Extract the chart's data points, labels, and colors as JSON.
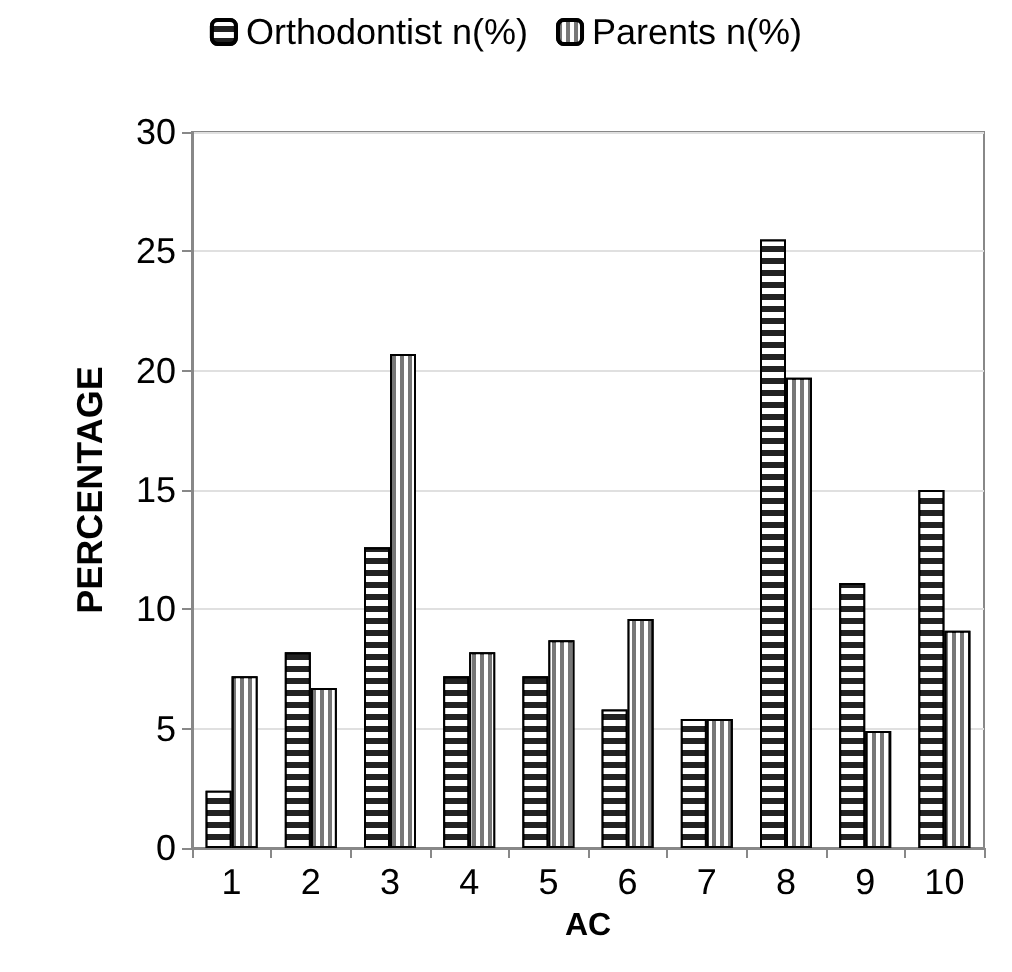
{
  "chart_data": {
    "type": "bar",
    "xlabel": "AC",
    "ylabel": "PERCENTAGE",
    "categories": [
      "1",
      "2",
      "3",
      "4",
      "5",
      "6",
      "7",
      "8",
      "9",
      "10"
    ],
    "series": [
      {
        "name": "Orthodontist n(%)",
        "color": "#222222",
        "values": [
          2.4,
          8.2,
          12.6,
          7.2,
          7.2,
          5.8,
          5.4,
          25.5,
          11.1,
          15.0
        ]
      },
      {
        "name": "Parents n(%)",
        "color": "#777777",
        "values": [
          7.2,
          6.7,
          20.7,
          8.2,
          8.7,
          9.6,
          5.4,
          19.7,
          4.9,
          9.1
        ]
      }
    ],
    "ylim": [
      0,
      30
    ],
    "yticks": [
      0,
      5,
      10,
      15,
      20,
      25,
      30
    ],
    "grid": "y",
    "legend": "top"
  }
}
